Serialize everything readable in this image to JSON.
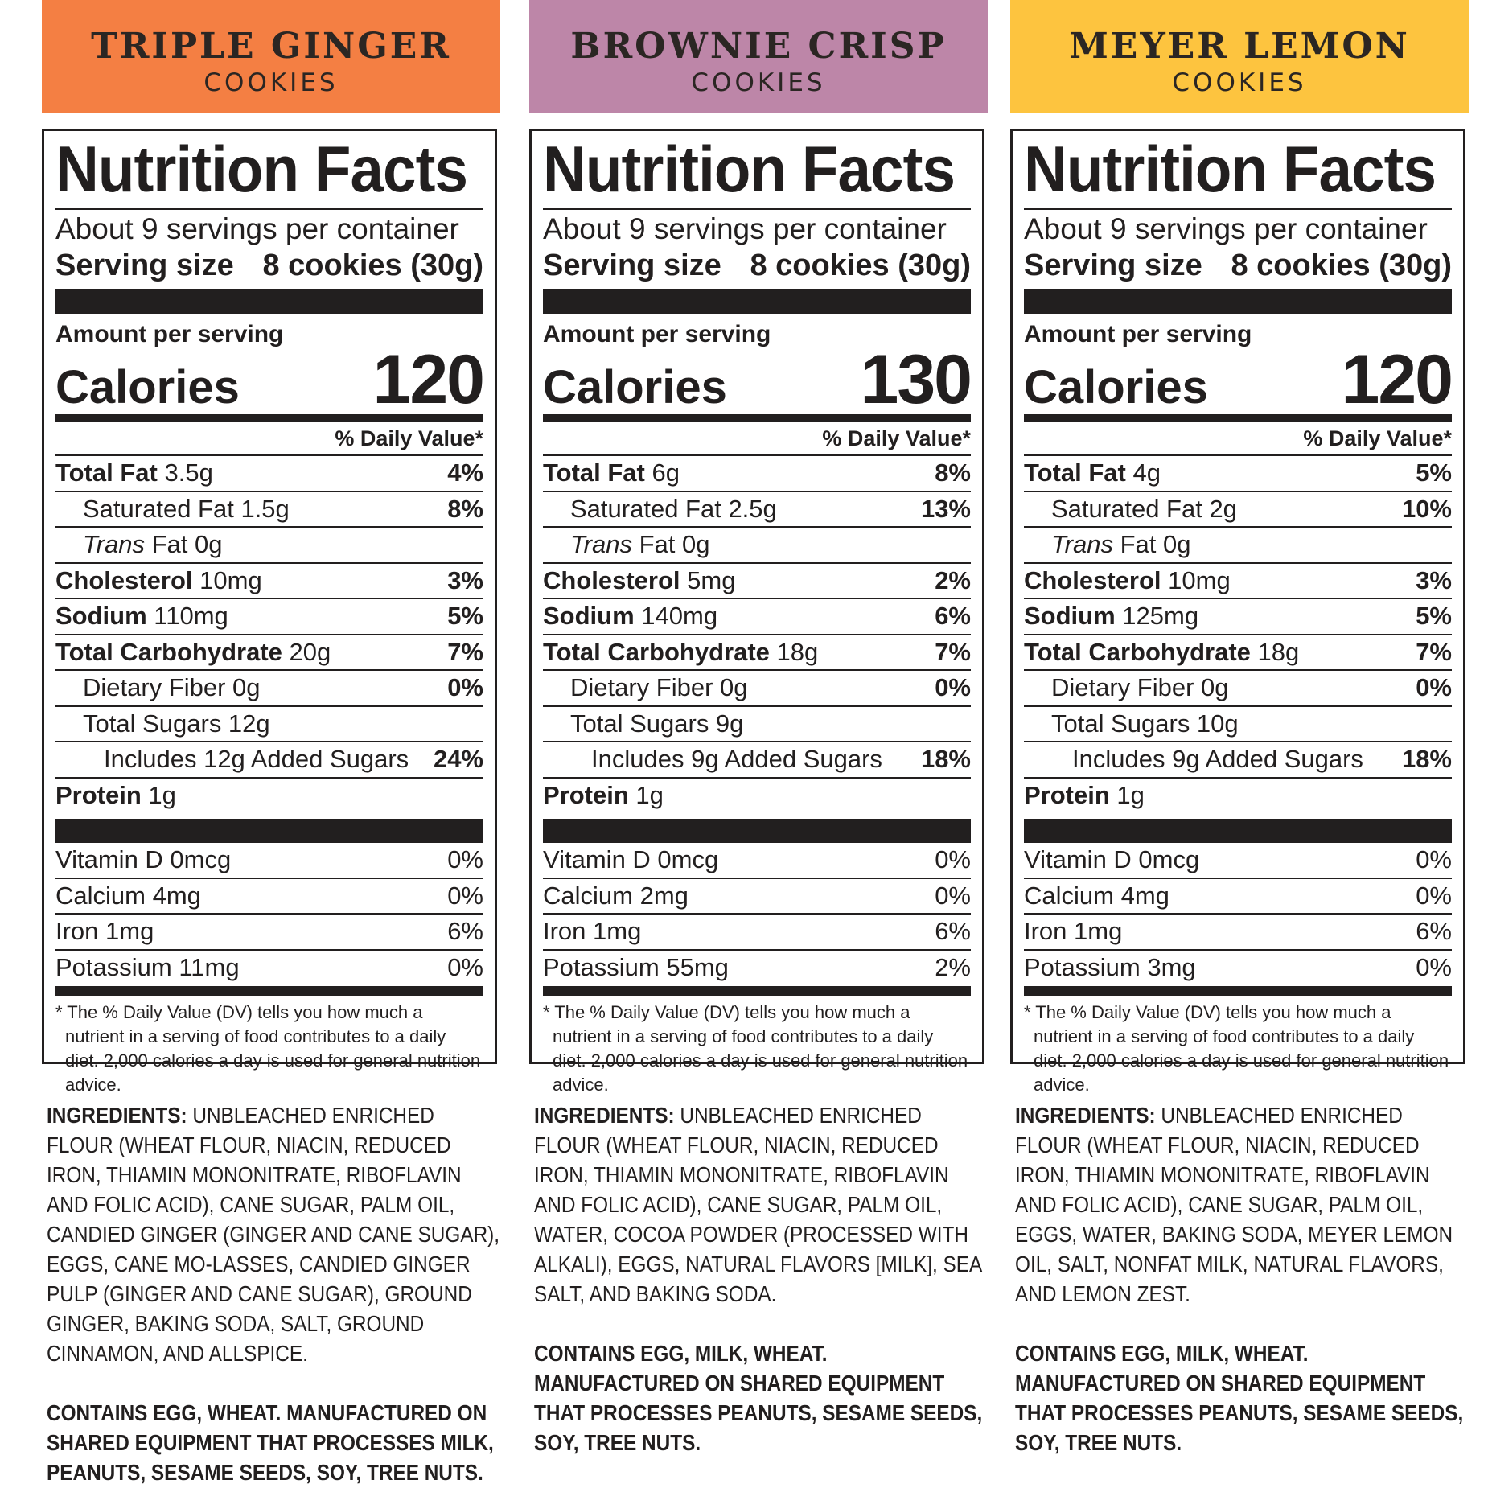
{
  "products": [
    {
      "name": "TRIPLE GINGER",
      "sub": "COOKIES",
      "color": "#f47f43",
      "facts": {
        "title": "Nutrition Facts",
        "servings": "About 9 servings per container",
        "serving_size_label": "Serving size",
        "serving_size": "8 cookies (30g)",
        "amount_label": "Amount per serving",
        "calories_label": "Calories",
        "calories": "120",
        "dv_label": "% Daily Value*",
        "total_fat_label": "Total Fat",
        "total_fat": "3.5g",
        "total_fat_pct": "4%",
        "sat_fat": "Saturated Fat 1.5g",
        "sat_fat_pct": "8%",
        "trans_label": "Trans",
        "trans_rest": "Fat 0g",
        "chol_label": "Cholesterol",
        "chol": "10mg",
        "chol_pct": "3%",
        "sodium_label": "Sodium",
        "sodium": "110mg",
        "sodium_pct": "5%",
        "carb_label": "Total Carbohydrate",
        "carb": "20g",
        "carb_pct": "7%",
        "fiber": "Dietary Fiber 0g",
        "fiber_pct": "0%",
        "sugars": "Total Sugars 12g",
        "added": "Includes 12g Added Sugars",
        "added_pct": "24%",
        "protein_label": "Protein",
        "protein": "1g",
        "vitd": "Vitamin D 0mcg",
        "vitd_pct": "0%",
        "calcium": "Calcium 4mg",
        "calcium_pct": "0%",
        "iron": "Iron 1mg",
        "iron_pct": "6%",
        "potassium": "Potassium 11mg",
        "potassium_pct": "0%",
        "footnote": "* The % Daily Value (DV) tells you how much a nutrient in a serving of food contributes to a daily diet. 2,000 calories a day is used for general nutrition advice."
      },
      "ingredients_label": "INGREDIENTS:",
      "ingredients": "UNBLEACHED ENRICHED FLOUR (WHEAT FLOUR, NIACIN, REDUCED IRON, THIAMIN MONONITRATE, RIBOFLAVIN AND FOLIC ACID), CANE SUGAR, PALM OIL, CANDIED GINGER (GINGER AND CANE SUGAR), EGGS, CANE MO-LASSES, CANDIED GINGER PULP (GINGER AND CANE SUGAR), GROUND GINGER, BAKING SODA, SALT, GROUND CINNAMON, AND ALLSPICE.",
      "contains": "CONTAINS EGG, WHEAT. MANUFACTURED ON SHARED EQUIPMENT THAT PROCESSES MILK, PEANUTS, SESAME SEEDS, SOY, TREE NUTS."
    },
    {
      "name": "BROWNIE CRISP",
      "sub": "COOKIES",
      "color": "#bd86a8",
      "facts": {
        "title": "Nutrition Facts",
        "servings": "About 9 servings per container",
        "serving_size_label": "Serving size",
        "serving_size": "8 cookies (30g)",
        "amount_label": "Amount per serving",
        "calories_label": "Calories",
        "calories": "130",
        "dv_label": "% Daily Value*",
        "total_fat_label": "Total Fat",
        "total_fat": "6g",
        "total_fat_pct": "8%",
        "sat_fat": "Saturated Fat 2.5g",
        "sat_fat_pct": "13%",
        "trans_label": "Trans",
        "trans_rest": "Fat 0g",
        "chol_label": "Cholesterol",
        "chol": "5mg",
        "chol_pct": "2%",
        "sodium_label": "Sodium",
        "sodium": "140mg",
        "sodium_pct": "6%",
        "carb_label": "Total Carbohydrate",
        "carb": "18g",
        "carb_pct": "7%",
        "fiber": "Dietary Fiber 0g",
        "fiber_pct": "0%",
        "sugars": "Total Sugars 9g",
        "added": "Includes 9g Added Sugars",
        "added_pct": "18%",
        "protein_label": "Protein",
        "protein": "1g",
        "vitd": "Vitamin D 0mcg",
        "vitd_pct": "0%",
        "calcium": "Calcium 2mg",
        "calcium_pct": "0%",
        "iron": "Iron 1mg",
        "iron_pct": "6%",
        "potassium": "Potassium 55mg",
        "potassium_pct": "2%",
        "footnote": "* The % Daily Value (DV) tells you how much a nutrient in a serving of food contributes to a daily diet. 2,000 calories a day is used for general nutrition advice."
      },
      "ingredients_label": "INGREDIENTS:",
      "ingredients": "UNBLEACHED ENRICHED FLOUR (WHEAT FLOUR, NIACIN, REDUCED IRON, THIAMIN MONONITRATE, RIBOFLAVIN AND FOLIC ACID), CANE SUGAR, PALM OIL, WATER, COCOA POWDER (PROCESSED WITH ALKALI), EGGS, NATURAL FLAVORS [MILK], SEA SALT, AND BAKING SODA.",
      "contains": "CONTAINS EGG, MILK, WHEAT. MANUFACTURED ON SHARED EQUIPMENT THAT PROCESSES PEANUTS, SESAME SEEDS, SOY, TREE NUTS."
    },
    {
      "name": "MEYER LEMON",
      "sub": "COOKIES",
      "color": "#fdc43f",
      "facts": {
        "title": "Nutrition Facts",
        "servings": "About 9 servings per container",
        "serving_size_label": "Serving size",
        "serving_size": "8 cookies (30g)",
        "amount_label": "Amount per serving",
        "calories_label": "Calories",
        "calories": "120",
        "dv_label": "% Daily Value*",
        "total_fat_label": "Total Fat",
        "total_fat": "4g",
        "total_fat_pct": "5%",
        "sat_fat": "Saturated Fat 2g",
        "sat_fat_pct": "10%",
        "trans_label": "Trans",
        "trans_rest": "Fat 0g",
        "chol_label": "Cholesterol",
        "chol": "10mg",
        "chol_pct": "3%",
        "sodium_label": "Sodium",
        "sodium": "125mg",
        "sodium_pct": "5%",
        "carb_label": "Total Carbohydrate",
        "carb": "18g",
        "carb_pct": "7%",
        "fiber": "Dietary Fiber 0g",
        "fiber_pct": "0%",
        "sugars": "Total Sugars 10g",
        "added": "Includes 9g Added Sugars",
        "added_pct": "18%",
        "protein_label": "Protein",
        "protein": "1g",
        "vitd": "Vitamin D 0mcg",
        "vitd_pct": "0%",
        "calcium": "Calcium 4mg",
        "calcium_pct": "0%",
        "iron": "Iron 1mg",
        "iron_pct": "6%",
        "potassium": "Potassium 3mg",
        "potassium_pct": "0%",
        "footnote": "* The % Daily Value (DV) tells you how much a nutrient in a serving of food contributes to a daily diet. 2,000 calories a day is used for general nutrition advice."
      },
      "ingredients_label": "INGREDIENTS:",
      "ingredients": "UNBLEACHED ENRICHED FLOUR (WHEAT FLOUR, NIACIN, REDUCED IRON, THIAMIN MONONITRATE, RIBOFLAVIN AND FOLIC ACID), CANE SUGAR, PALM OIL, EGGS, WATER, BAKING SODA, MEYER LEMON OIL, SALT, NONFAT MILK, NATURAL FLAVORS, AND LEMON ZEST.",
      "contains": "CONTAINS EGG, MILK, WHEAT. MANUFACTURED ON SHARED EQUIPMENT THAT PROCESSES PEANUTS, SESAME SEEDS, SOY, TREE NUTS."
    }
  ]
}
